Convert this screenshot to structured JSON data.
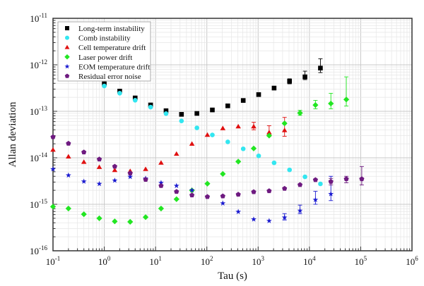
{
  "chart_data": {
    "type": "scatter",
    "title": "",
    "xlabel": "Tau (s)",
    "ylabel": "Allan deviation",
    "xscale": "log",
    "yscale": "log",
    "xlim": [
      0.1,
      1000000
    ],
    "ylim": [
      1e-16,
      1e-11
    ],
    "grid": true,
    "legend_position": "top-left",
    "x_ticks": [
      {
        "value": 0.1,
        "base": "10",
        "exp": "-1"
      },
      {
        "value": 1,
        "base": "10",
        "exp": "0"
      },
      {
        "value": 10,
        "base": "10",
        "exp": "1"
      },
      {
        "value": 100,
        "base": "10",
        "exp": "2"
      },
      {
        "value": 1000,
        "base": "10",
        "exp": "3"
      },
      {
        "value": 10000,
        "base": "10",
        "exp": "4"
      },
      {
        "value": 100000,
        "base": "10",
        "exp": "5"
      },
      {
        "value": 1000000,
        "base": "10",
        "exp": "6"
      }
    ],
    "y_ticks": [
      {
        "value": 1e-16,
        "base": "10",
        "exp": "-16"
      },
      {
        "value": 1e-15,
        "base": "10",
        "exp": "-15"
      },
      {
        "value": 1e-14,
        "base": "10",
        "exp": "-14"
      },
      {
        "value": 1e-13,
        "base": "10",
        "exp": "-13"
      },
      {
        "value": 1e-12,
        "base": "10",
        "exp": "-12"
      },
      {
        "value": 1e-11,
        "base": "10",
        "exp": "-11"
      }
    ],
    "series": [
      {
        "name": "Long-term instability",
        "marker": "square",
        "color": "#000000",
        "x": [
          1,
          2,
          4,
          8,
          16,
          32,
          64,
          128,
          256,
          512,
          1024,
          2048,
          4096,
          8192,
          16384
        ],
        "y": [
          3.9e-13,
          2.72e-13,
          1.94e-13,
          1.37e-13,
          1.03e-13,
          8.6e-14,
          9e-14,
          1.07e-13,
          1.31e-13,
          1.71e-13,
          2.29e-13,
          3.16e-13,
          4.44e-13,
          5.52e-13,
          8.5e-13
        ],
        "errors": [
          {
            "x": 4096,
            "low": 3.9e-13,
            "high": 5e-13
          },
          {
            "x": 8192,
            "low": 4.8e-13,
            "high": 7.3e-13
          },
          {
            "x": 16384,
            "low": 6.8e-13,
            "high": 1.35e-12
          }
        ]
      },
      {
        "name": "Comb instability",
        "marker": "circle",
        "color": "#33e6f0",
        "x": [
          1,
          2,
          4,
          8,
          16,
          32,
          64,
          128,
          256,
          512,
          1024,
          2048,
          4096,
          8192,
          16384
        ],
        "y": [
          3.5e-13,
          2.45e-13,
          1.73e-13,
          1.23e-13,
          8.9e-14,
          6.2e-14,
          4.4e-14,
          3.1e-14,
          2.2e-14,
          1.56e-14,
          1.1e-14,
          7.8e-15,
          5.5e-15,
          3.9e-15,
          2.75e-15
        ],
        "errors": []
      },
      {
        "name": "Cell temperature drift",
        "marker": "triangle",
        "color": "#e01010",
        "x": [
          0.1,
          0.2,
          0.4,
          0.8,
          1.6,
          3.2,
          6.4,
          12.8,
          25.6,
          51.2,
          102.4,
          204.8,
          409.6,
          819.2,
          1638.4,
          3276.8
        ],
        "y": [
          1.48e-14,
          1.06e-14,
          8.1e-15,
          6.3e-15,
          5.4e-15,
          5.15e-15,
          5.7e-15,
          7.8e-15,
          1.21e-14,
          1.99e-14,
          3.1e-14,
          4.3e-14,
          4.7e-14,
          4.7e-14,
          3.5e-14,
          3.9e-14
        ],
        "errors": [
          {
            "x": 819.2,
            "low": 4e-14,
            "high": 5.8e-14
          },
          {
            "x": 1638.4,
            "low": 2.9e-14,
            "high": 4.9e-14
          },
          {
            "x": 3276.8,
            "low": 2.9e-14,
            "high": 7.4e-14
          }
        ]
      },
      {
        "name": "Laser power drift",
        "marker": "diamond",
        "color": "#22e622",
        "x": [
          0.1,
          0.2,
          0.4,
          0.8,
          1.6,
          3.2,
          6.4,
          12.8,
          25.6,
          51.2,
          102.4,
          204.8,
          409.6,
          819.2,
          1638.4,
          3276.8,
          6553.6,
          13107.2,
          26214.4,
          52428.8
        ],
        "y": [
          8.9e-16,
          8.1e-16,
          6.1e-16,
          5e-16,
          4.3e-16,
          4.2e-16,
          5.3e-16,
          8.1e-16,
          1.29e-15,
          1.99e-15,
          2.78e-15,
          4.5e-15,
          8.3e-15,
          1.59e-14,
          3e-14,
          5.5e-14,
          9.2e-14,
          1.36e-13,
          1.47e-13,
          1.79e-13
        ],
        "errors": [
          {
            "x": 6553.6,
            "low": 8.2e-14,
            "high": 1.05e-13
          },
          {
            "x": 13107.2,
            "low": 1.13e-13,
            "high": 1.72e-13
          },
          {
            "x": 26214.4,
            "low": 1.13e-13,
            "high": 2.44e-13
          },
          {
            "x": 52428.8,
            "low": 1.3e-13,
            "high": 5.5e-13
          }
        ]
      },
      {
        "name": "EOM temperature drift",
        "marker": "star",
        "color": "#1a1ad0",
        "x": [
          0.1,
          0.2,
          0.4,
          0.8,
          1.6,
          3.2,
          6.4,
          12.8,
          25.6,
          51.2,
          204.8,
          409.6,
          819.2,
          1638.4,
          3276.8,
          6553.6,
          13107.2,
          26214.4
        ],
        "y": [
          5.7e-15,
          4.2e-15,
          3.1e-15,
          2.75e-15,
          3.25e-15,
          3.9e-15,
          3.6e-15,
          2.9e-15,
          2.5e-15,
          2e-15,
          1.05e-15,
          6.9e-16,
          4.75e-16,
          4.4e-16,
          5.2e-16,
          7.3e-16,
          1.25e-15,
          1.67e-15
        ],
        "errors": [
          {
            "x": 3276.8,
            "low": 4.6e-16,
            "high": 6.3e-16
          },
          {
            "x": 6553.6,
            "low": 6.3e-16,
            "high": 9.6e-16
          },
          {
            "x": 13107.2,
            "low": 1e-15,
            "high": 1.9e-15
          },
          {
            "x": 26214.4,
            "low": 1.2e-15,
            "high": 4e-15
          }
        ]
      },
      {
        "name": "Residual error noise",
        "marker": "pentagon",
        "color": "#6e1a80",
        "x": [
          0.1,
          0.2,
          0.4,
          0.8,
          1.6,
          3.2,
          6.4,
          12.8,
          25.6,
          51.2,
          102.4,
          204.8,
          409.6,
          819.2,
          1638.4,
          3276.8,
          6553.6,
          13107.2,
          26214.4,
          52428.8,
          104857.6
        ],
        "y": [
          2.8e-14,
          2.03e-14,
          1.32e-14,
          9.3e-15,
          6.5e-15,
          4.65e-15,
          3.4e-15,
          2.5e-15,
          1.87e-15,
          1.57e-15,
          1.45e-15,
          1.5e-15,
          1.63e-15,
          1.85e-15,
          1.94e-15,
          2.18e-15,
          2.63e-15,
          3.36e-15,
          3.08e-15,
          3.5e-15,
          3.5e-15
        ],
        "errors": [
          {
            "x": 26214.4,
            "low": 2.6e-15,
            "high": 3.6e-15
          },
          {
            "x": 52428.8,
            "low": 2.9e-15,
            "high": 4e-15
          },
          {
            "x": 104857.6,
            "low": 2.6e-15,
            "high": 6.5e-15
          }
        ]
      }
    ]
  }
}
